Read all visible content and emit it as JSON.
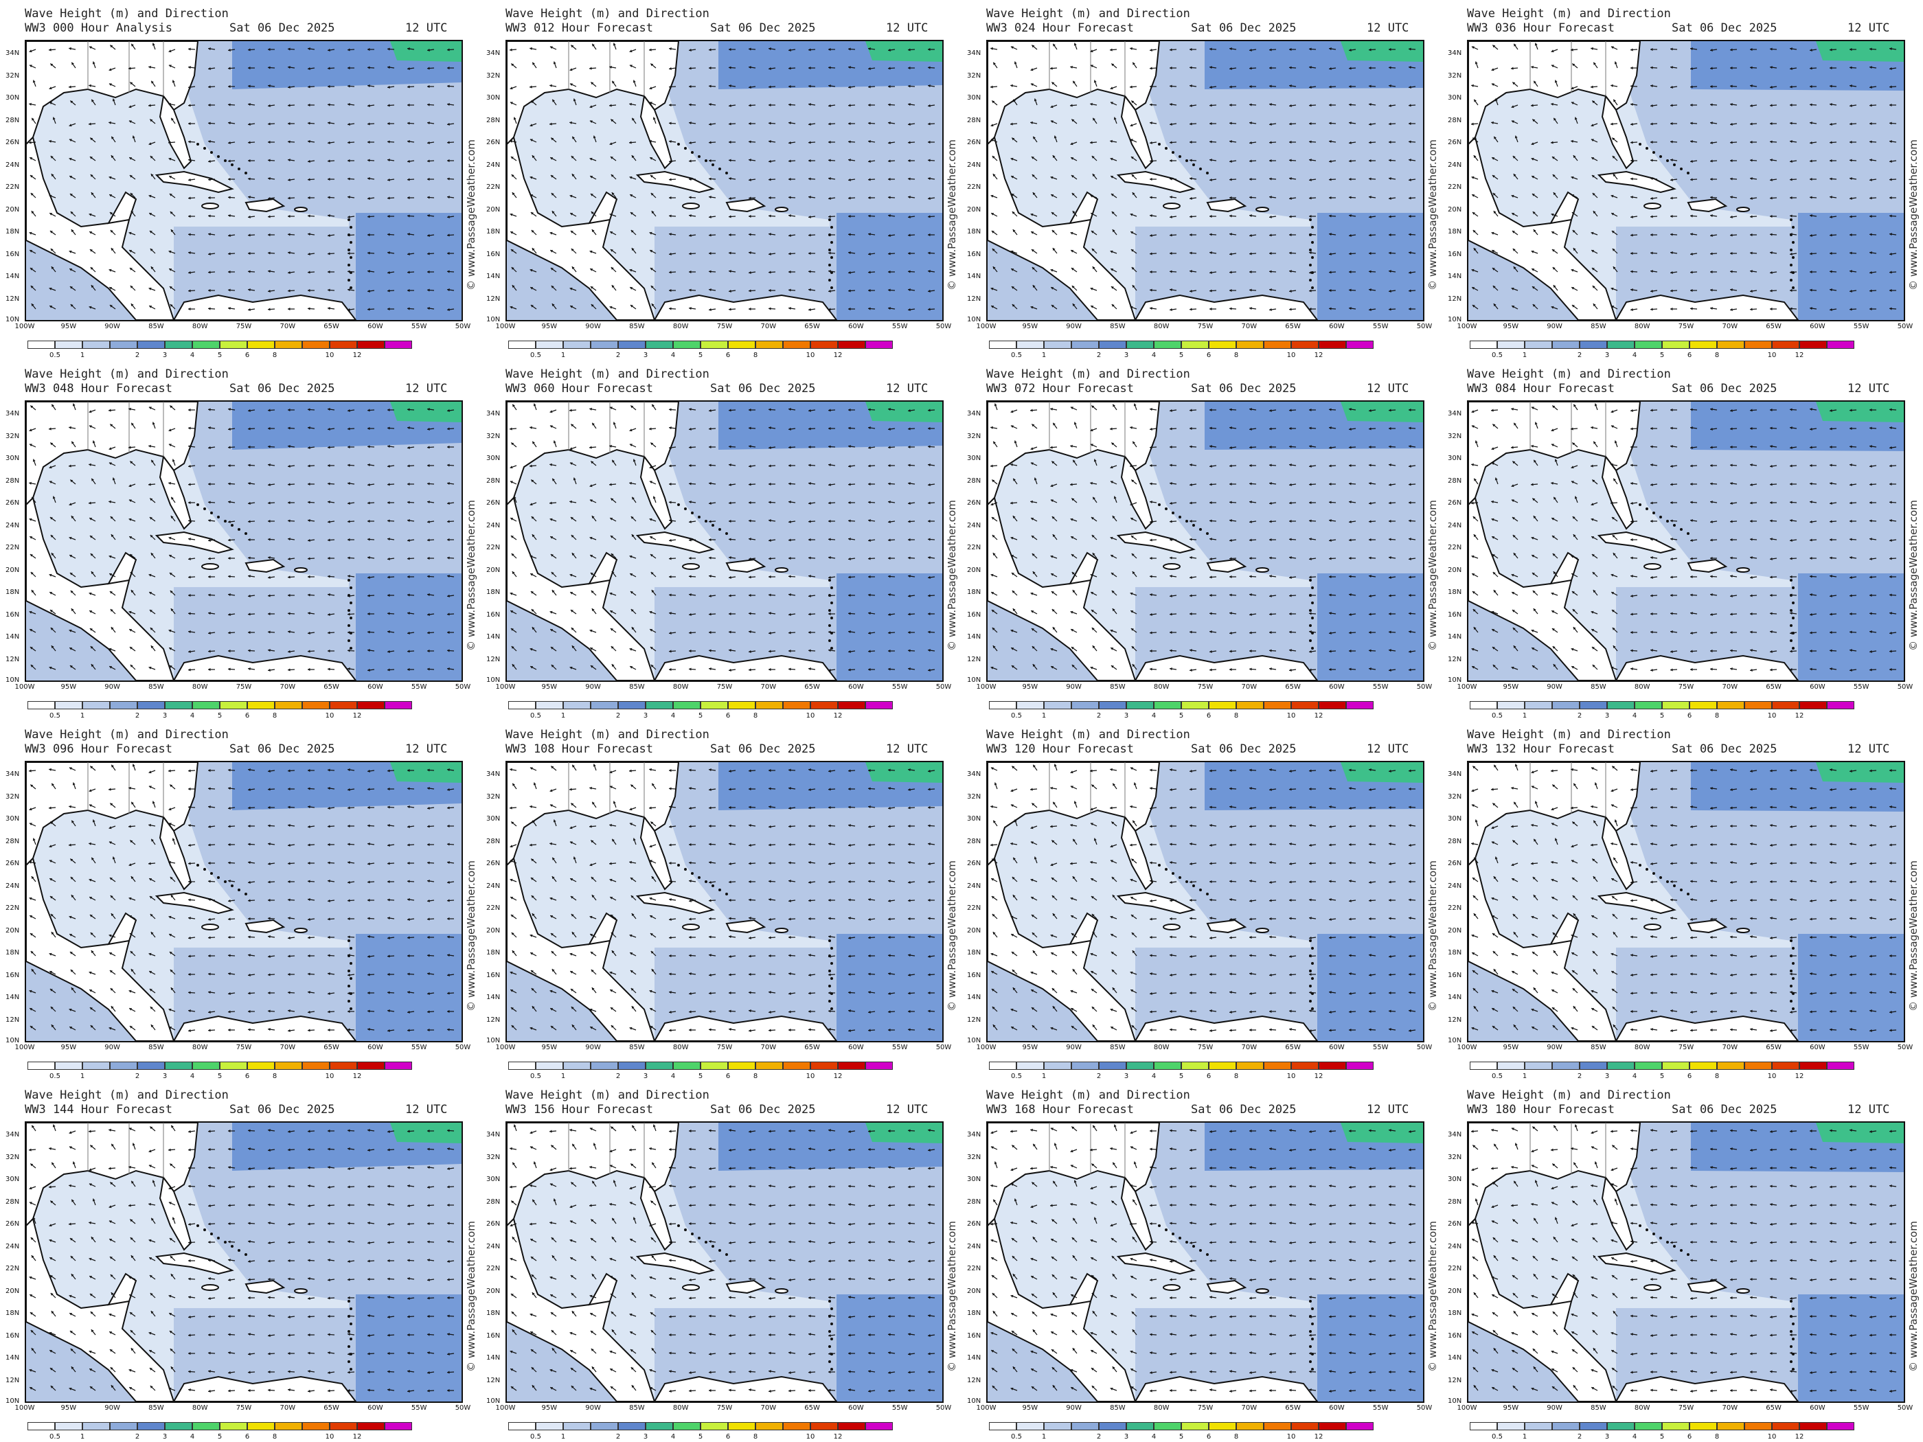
{
  "header": {
    "line1": "Wave Height (m) and Direction",
    "model": "WW3",
    "date": "Sat 06 Dec 2025",
    "utc": "12 UTC"
  },
  "watermark": "© www.PassageWeather.com",
  "panels": [
    {
      "hour": "000",
      "kind": "Hour Analysis",
      "line2": "WW3 000 Hour Analysis"
    },
    {
      "hour": "012",
      "kind": "Hour Forecast",
      "line2": "WW3 012 Hour Forecast"
    },
    {
      "hour": "024",
      "kind": "Hour Forecast",
      "line2": "WW3 024 Hour Forecast"
    },
    {
      "hour": "036",
      "kind": "Hour Forecast",
      "line2": "WW3 036 Hour Forecast"
    },
    {
      "hour": "048",
      "kind": "Hour Forecast",
      "line2": "WW3 048 Hour Forecast"
    },
    {
      "hour": "060",
      "kind": "Hour Forecast",
      "line2": "WW3 060 Hour Forecast"
    },
    {
      "hour": "072",
      "kind": "Hour Forecast",
      "line2": "WW3 072 Hour Forecast"
    },
    {
      "hour": "084",
      "kind": "Hour Forecast",
      "line2": "WW3 084 Hour Forecast"
    },
    {
      "hour": "096",
      "kind": "Hour Forecast",
      "line2": "WW3 096 Hour Forecast"
    },
    {
      "hour": "108",
      "kind": "Hour Forecast",
      "line2": "WW3 108 Hour Forecast"
    },
    {
      "hour": "120",
      "kind": "Hour Forecast",
      "line2": "WW3 120 Hour Forecast"
    },
    {
      "hour": "132",
      "kind": "Hour Forecast",
      "line2": "WW3 132 Hour Forecast"
    },
    {
      "hour": "144",
      "kind": "Hour Forecast",
      "line2": "WW3 144 Hour Forecast"
    },
    {
      "hour": "156",
      "kind": "Hour Forecast",
      "line2": "WW3 156 Hour Forecast"
    },
    {
      "hour": "168",
      "kind": "Hour Forecast",
      "line2": "WW3 168 Hour Forecast"
    },
    {
      "hour": "180",
      "kind": "Hour Forecast",
      "line2": "WW3 180 Hour Forecast"
    }
  ],
  "lat_labels": [
    "34N",
    "32N",
    "30N",
    "28N",
    "26N",
    "24N",
    "22N",
    "20N",
    "18N",
    "16N",
    "14N",
    "12N",
    "10N"
  ],
  "lon_labels": [
    "100W",
    "95W",
    "90W",
    "85W",
    "80W",
    "75W",
    "70W",
    "65W",
    "60W",
    "55W",
    "50W"
  ],
  "colorbar": {
    "labels": [
      "0.5",
      "1",
      "2",
      "3",
      "4",
      "5",
      "6",
      "8",
      "10",
      "12"
    ],
    "colors": [
      "#ffffff",
      "#dfe8f6",
      "#b9cbe8",
      "#8eabda",
      "#5f86cc",
      "#3cb88a",
      "#4ed36a",
      "#c8f03c",
      "#f0e000",
      "#f0b000",
      "#f07800",
      "#e03c00",
      "#c80000",
      "#d000c8"
    ]
  },
  "map_colors": {
    "land": "#ffffff",
    "calm": "#dbe6f4",
    "mid": "#b6c8e6",
    "high": "#6f96d6",
    "green": "#3ec08a",
    "coast": "#111111"
  }
}
